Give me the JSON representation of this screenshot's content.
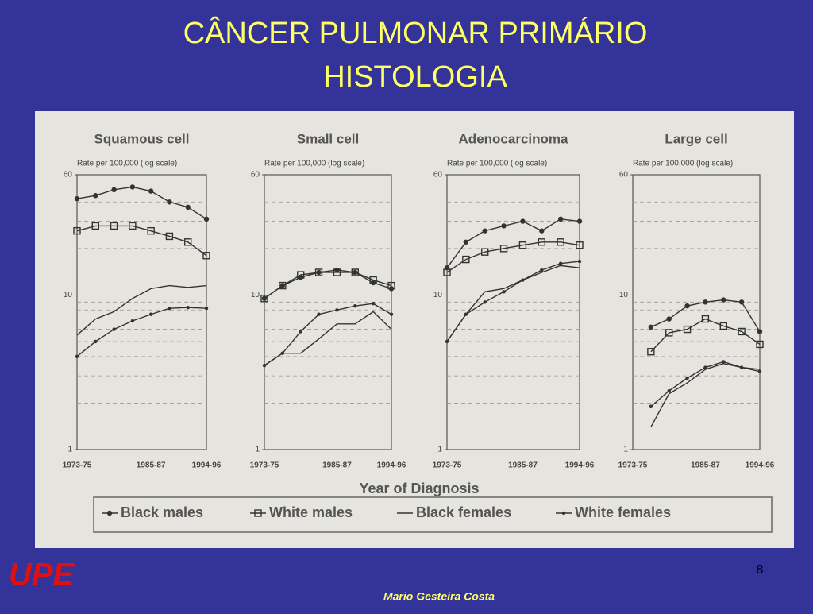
{
  "slide": {
    "title": "CÂNCER   PULMONAR   PRIMÁRIO",
    "subtitle": "HISTOLOGIA",
    "xlabel": "Year of Diagnosis",
    "legend": [
      "Black males",
      "White males",
      "Black females",
      "White females"
    ],
    "logo": "UPE",
    "page_number": "8",
    "author": "Mario Gesteira Costa"
  },
  "chart_data": [
    {
      "type": "line",
      "title": "Squamous cell",
      "ylabel": "Rate per 100,000 (log scale)",
      "log_scale": true,
      "categories": [
        "1973-75",
        null,
        null,
        null,
        "1985-87",
        null,
        null,
        "1994-96"
      ],
      "ylim": [
        1,
        60
      ],
      "yticks": [
        1,
        10,
        60
      ],
      "series": [
        {
          "marker": "filled-circle",
          "color": "#333",
          "values": [
            42,
            44,
            48,
            50,
            47,
            40,
            37,
            31
          ]
        },
        {
          "marker": "open-square",
          "color": "#333",
          "values": [
            26,
            28,
            28,
            28,
            26,
            24,
            22,
            18
          ]
        },
        {
          "marker": "none",
          "color": "#333",
          "values": [
            5.5,
            7,
            7.8,
            9.5,
            11,
            11.5,
            11.2,
            11.5
          ]
        },
        {
          "marker": "dot",
          "color": "#333",
          "values": [
            4,
            5,
            6,
            6.8,
            7.5,
            8.2,
            8.3,
            8.2
          ]
        }
      ]
    },
    {
      "type": "line",
      "title": "Small cell",
      "ylabel": "Rate per 100,000 (log scale)",
      "log_scale": true,
      "categories": [
        "1973-75",
        null,
        null,
        null,
        "1985-87",
        null,
        null,
        "1994-96"
      ],
      "ylim": [
        1,
        60
      ],
      "yticks": [
        1,
        10,
        60
      ],
      "series": [
        {
          "marker": "filled-circle",
          "color": "#333",
          "values": [
            9.5,
            11.5,
            13,
            14,
            14.5,
            14,
            12,
            11
          ]
        },
        {
          "marker": "open-square",
          "color": "#333",
          "values": [
            9.5,
            11.5,
            13.5,
            14,
            14,
            14,
            12.5,
            11.5
          ]
        },
        {
          "marker": "none",
          "color": "#333",
          "values": [
            3.5,
            4.2,
            4.2,
            5.2,
            6.5,
            6.5,
            7.8,
            6
          ]
        },
        {
          "marker": "dot",
          "color": "#333",
          "values": [
            3.5,
            4.2,
            5.8,
            7.5,
            8,
            8.5,
            8.8,
            7.5
          ]
        }
      ]
    },
    {
      "type": "line",
      "title": "Adenocarcinoma",
      "ylabel": "Rate per 100,000 (log scale)",
      "log_scale": true,
      "categories": [
        "1973-75",
        null,
        null,
        null,
        "1985-87",
        null,
        null,
        "1994-96"
      ],
      "ylim": [
        1,
        60
      ],
      "yticks": [
        1,
        10,
        60
      ],
      "series": [
        {
          "marker": "filled-circle",
          "color": "#333",
          "values": [
            15,
            22,
            26,
            28,
            30,
            26,
            31,
            30
          ]
        },
        {
          "marker": "open-square",
          "color": "#333",
          "values": [
            14,
            17,
            19,
            20,
            21,
            22,
            22,
            21
          ]
        },
        {
          "marker": "none",
          "color": "#333",
          "values": [
            5,
            7.5,
            10.5,
            11,
            12.5,
            14,
            15.5,
            15
          ]
        },
        {
          "marker": "dot",
          "color": "#333",
          "values": [
            5,
            7.5,
            9,
            10.5,
            12.5,
            14.5,
            16,
            16.5
          ]
        }
      ]
    },
    {
      "type": "line",
      "title": "Large cell",
      "ylabel": "Rate per 100,000 (log scale)",
      "log_scale": true,
      "categories": [
        "1973-75",
        null,
        null,
        null,
        "1985-87",
        null,
        null,
        "1994-96"
      ],
      "ylim": [
        1,
        60
      ],
      "yticks": [
        1,
        10,
        60
      ],
      "series": [
        {
          "marker": "filled-circle",
          "color": "#333",
          "values": [
            null,
            6.2,
            7,
            8.5,
            9,
            9.3,
            9,
            5.8
          ]
        },
        {
          "marker": "open-square",
          "color": "#333",
          "values": [
            null,
            4.3,
            5.7,
            6,
            7,
            6.3,
            5.8,
            4.8
          ]
        },
        {
          "marker": "none",
          "color": "#333",
          "values": [
            null,
            1.4,
            2.3,
            2.7,
            3.3,
            3.6,
            3.4,
            3.3
          ]
        },
        {
          "marker": "dot",
          "color": "#333",
          "values": [
            null,
            1.9,
            2.4,
            2.9,
            3.4,
            3.7,
            3.4,
            3.2
          ]
        }
      ]
    }
  ]
}
